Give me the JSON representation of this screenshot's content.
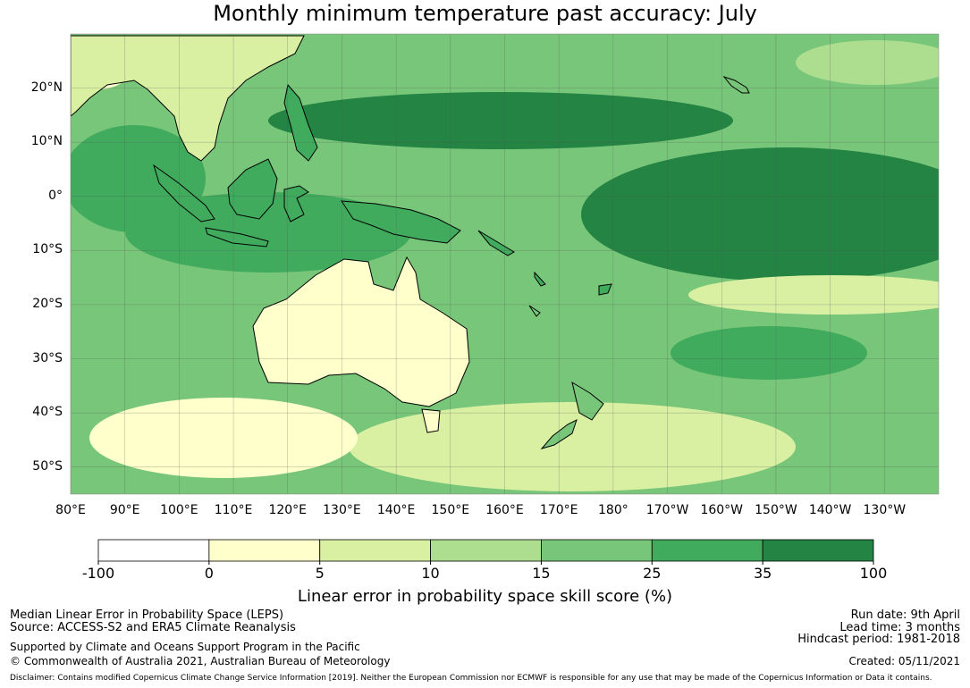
{
  "title": "Monthly minimum temperature past accuracy: July",
  "map": {
    "lat_labels": [
      "20°N",
      "10°N",
      "0°",
      "10°S",
      "20°S",
      "30°S",
      "40°S",
      "50°S"
    ],
    "lon_labels": [
      "80°E",
      "90°E",
      "100°E",
      "110°E",
      "120°E",
      "130°E",
      "140°E",
      "150°E",
      "160°E",
      "170°E",
      "180°",
      "170°W",
      "160°W",
      "150°W",
      "140°W",
      "130°W"
    ],
    "lat_values": [
      20,
      10,
      0,
      -10,
      -20,
      -30,
      -40,
      -50
    ],
    "lon_values": [
      80,
      90,
      100,
      110,
      120,
      130,
      140,
      150,
      160,
      170,
      180,
      190,
      200,
      210,
      220,
      230
    ],
    "lon_range": [
      80,
      240
    ],
    "lat_range": [
      -55,
      30
    ],
    "grid": true
  },
  "colorbar": {
    "bounds": [
      "-100",
      "0",
      "5",
      "10",
      "15",
      "25",
      "35",
      "100"
    ],
    "colors": [
      "#ffffff",
      "#ffffcc",
      "#d9f0a3",
      "#addd8e",
      "#78c679",
      "#41ab5d",
      "#238443"
    ],
    "title": "Linear error in probability space skill score (%)"
  },
  "footer": {
    "line1": "Median Linear Error in Probability Space (LEPS)",
    "line2": "Source: ACCESS-S2 and ERA5 Climate Reanalysis",
    "line3": "Supported by Climate and Oceans Support Program in the Pacific",
    "line4": "© Commonwealth of Australia 2021, Australian Bureau of Meteorology",
    "run_date": "Run date: 9th April",
    "lead_time": "Lead time: 3 months",
    "hindcast": "Hindcast period: 1981-2018",
    "created": "Created: 05/11/2021",
    "disclaimer": "Disclaimer: Contains modified Copernicus Climate Change Service Information [2019]. Neither the European Commission nor ECMWF is responsible for any use that may be made of the Copernicus Information or Data it contains."
  }
}
